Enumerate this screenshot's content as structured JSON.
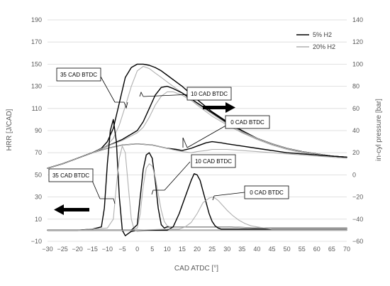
{
  "chart_data": {
    "type": "line",
    "title": "",
    "xlabel": "CAD ATDC [°]",
    "ylabel_left": "HRR [J/CAD]",
    "ylabel_right": "in-cyl pressure [bar]",
    "xlim": [
      -30,
      70
    ],
    "ylim_left": [
      -10,
      190
    ],
    "ylim_right": [
      -60,
      140
    ],
    "x_ticks": [
      "−30",
      "−25",
      "−20",
      "−15",
      "−10",
      "−5",
      "0",
      "5",
      "10",
      "15",
      "20",
      "25",
      "30",
      "35",
      "40",
      "45",
      "50",
      "55",
      "60",
      "65",
      "70"
    ],
    "y_left_ticks": [
      "−10",
      "10",
      "30",
      "50",
      "70",
      "90",
      "110",
      "130",
      "150",
      "170",
      "190"
    ],
    "y_right_ticks": [
      "−60",
      "−40",
      "−20",
      "0",
      "20",
      "40",
      "60",
      "80",
      "100",
      "120",
      "140"
    ],
    "grid": true,
    "legend_position": "top-right",
    "legend": [
      {
        "label": "5% H2",
        "color": "#000000"
      },
      {
        "label": "20% H2",
        "color": "#b0b0b0"
      }
    ],
    "annotations": [
      {
        "text": "35 CAD BTDC"
      },
      {
        "text": "10 CAD BTDC"
      },
      {
        "text": "0 CAD BTDC"
      },
      {
        "text": "35 CAD BTDC"
      },
      {
        "text": "10 CAD BTDC"
      },
      {
        "text": "0 CAD BTDC"
      }
    ],
    "series": [
      {
        "axis": "right",
        "color": "#000000",
        "x": [
          -30,
          -25,
          -20,
          -15,
          -12,
          -10,
          -8,
          -6,
          -4,
          -2,
          0,
          2,
          4,
          6,
          8,
          10,
          15,
          20,
          25,
          30,
          35,
          40,
          45,
          50,
          55,
          60,
          65,
          70
        ],
        "y": [
          6,
          10,
          15,
          20,
          24,
          30,
          42,
          65,
          88,
          97,
          100,
          100,
          99,
          97,
          94,
          90,
          80,
          68,
          57,
          48,
          40,
          33,
          28,
          24,
          21,
          19,
          17,
          16
        ]
      },
      {
        "axis": "right",
        "color": "#b0b0b0",
        "x": [
          -30,
          -25,
          -20,
          -15,
          -12,
          -10,
          -8,
          -6,
          -4,
          -2,
          0,
          2,
          4,
          6,
          8,
          10,
          15,
          20,
          25,
          30,
          35,
          40,
          45,
          50,
          55,
          60,
          65,
          70
        ],
        "y": [
          6,
          10,
          15,
          20,
          23,
          27,
          33,
          45,
          62,
          80,
          94,
          98,
          96,
          92,
          88,
          84,
          74,
          63,
          53,
          45,
          38,
          32,
          27,
          23,
          20,
          18,
          16,
          15
        ]
      },
      {
        "axis": "right",
        "color": "#000000",
        "x": [
          -30,
          -25,
          -20,
          -15,
          -10,
          -5,
          0,
          2,
          4,
          6,
          8,
          10,
          12,
          15,
          20,
          25,
          30,
          35,
          40,
          45,
          50,
          55,
          60,
          65,
          70
        ],
        "y": [
          6,
          10,
          15,
          20,
          26,
          32,
          40,
          48,
          60,
          72,
          79,
          80,
          78,
          74,
          65,
          56,
          47,
          39,
          33,
          28,
          24,
          21,
          19,
          17,
          16
        ]
      },
      {
        "axis": "right",
        "color": "#b0b0b0",
        "x": [
          -30,
          -25,
          -20,
          -15,
          -10,
          -5,
          0,
          2,
          4,
          6,
          8,
          10,
          12,
          15,
          20,
          25,
          30,
          35,
          40,
          45,
          50,
          55,
          60,
          65,
          70
        ],
        "y": [
          6,
          10,
          15,
          20,
          26,
          31,
          38,
          43,
          52,
          63,
          71,
          75,
          75,
          72,
          64,
          55,
          46,
          39,
          33,
          28,
          24,
          21,
          19,
          17,
          16
        ]
      },
      {
        "axis": "right",
        "color": "#000000",
        "x": [
          -30,
          -25,
          -20,
          -15,
          -10,
          -5,
          0,
          5,
          10,
          13,
          15,
          18,
          20,
          23,
          25,
          28,
          30,
          35,
          40,
          45,
          50,
          55,
          60,
          65,
          70
        ],
        "y": [
          6,
          10,
          15,
          20,
          24,
          27,
          28,
          27,
          24,
          23,
          22,
          24,
          26,
          29,
          30,
          29,
          28,
          26,
          24,
          22,
          20,
          19,
          18,
          17,
          16
        ]
      },
      {
        "axis": "right",
        "color": "#b0b0b0",
        "x": [
          -30,
          -25,
          -20,
          -15,
          -10,
          -5,
          0,
          5,
          10,
          13,
          15,
          18,
          20,
          23,
          25,
          28,
          30,
          35,
          40,
          45,
          50,
          55,
          60,
          65,
          70
        ],
        "y": [
          6,
          10,
          15,
          20,
          24,
          27,
          28,
          27,
          24,
          22,
          21,
          20,
          21,
          22,
          23,
          23,
          23,
          22,
          21,
          20,
          19,
          18,
          17,
          16,
          15
        ]
      },
      {
        "axis": "left",
        "color": "#000000",
        "x": [
          -30,
          -20,
          -15,
          -12,
          -11,
          -10,
          -9,
          -8,
          -7,
          -6,
          -5,
          -4,
          -3,
          -2,
          0,
          5,
          10,
          20,
          30,
          40,
          50,
          60,
          70
        ],
        "y": [
          0,
          0,
          1,
          3,
          20,
          60,
          90,
          100,
          80,
          30,
          0,
          -5,
          -3,
          -1,
          0,
          0,
          0,
          0,
          0,
          0,
          0,
          0,
          0
        ]
      },
      {
        "axis": "left",
        "color": "#b0b0b0",
        "x": [
          -30,
          -20,
          -15,
          -10,
          -8,
          -7,
          -6,
          -5,
          -4,
          -3,
          -2,
          -1,
          0,
          5,
          10,
          20,
          30,
          40,
          50,
          60,
          70
        ],
        "y": [
          0,
          0,
          1,
          2,
          10,
          40,
          65,
          76,
          70,
          40,
          10,
          0,
          -1,
          0,
          0,
          0,
          0,
          0,
          0,
          0,
          0
        ]
      },
      {
        "axis": "left",
        "color": "#000000",
        "x": [
          -30,
          -10,
          -5,
          -2,
          0,
          1,
          2,
          3,
          4,
          5,
          6,
          7,
          8,
          9,
          10,
          15,
          20,
          30,
          40,
          50,
          60,
          70
        ],
        "y": [
          0,
          0,
          0,
          0,
          5,
          30,
          55,
          68,
          70,
          65,
          45,
          20,
          5,
          2,
          3,
          3,
          3,
          3,
          2,
          2,
          2,
          2
        ]
      },
      {
        "axis": "left",
        "color": "#b0b0b0",
        "x": [
          -30,
          -10,
          -5,
          -2,
          0,
          1,
          2,
          3,
          4,
          5,
          6,
          7,
          8,
          9,
          10,
          11,
          15,
          20,
          30,
          40,
          50,
          60,
          70
        ],
        "y": [
          0,
          0,
          0,
          0,
          2,
          15,
          40,
          56,
          60,
          58,
          48,
          33,
          18,
          8,
          4,
          3,
          3,
          3,
          3,
          2,
          2,
          2,
          2
        ]
      },
      {
        "axis": "left",
        "color": "#000000",
        "x": [
          -30,
          0,
          10,
          12,
          14,
          16,
          18,
          19,
          20,
          21,
          22,
          23,
          24,
          25,
          26,
          27,
          28,
          30,
          35,
          40,
          50,
          60,
          70
        ],
        "y": [
          0,
          0,
          0,
          3,
          15,
          30,
          45,
          51,
          50,
          45,
          35,
          25,
          15,
          8,
          4,
          2,
          1,
          1,
          1,
          1,
          1,
          1,
          1
        ]
      },
      {
        "axis": "left",
        "color": "#b0b0b0",
        "x": [
          -30,
          0,
          10,
          14,
          16,
          18,
          20,
          22,
          24,
          25,
          26,
          27,
          28,
          29,
          30,
          32,
          34,
          36,
          38,
          40,
          45,
          50,
          60,
          70
        ],
        "y": [
          0,
          0,
          1,
          1,
          3,
          7,
          15,
          25,
          29,
          30,
          29,
          27,
          24,
          21,
          18,
          13,
          9,
          6,
          4,
          3,
          1,
          1,
          1,
          1
        ]
      }
    ]
  }
}
